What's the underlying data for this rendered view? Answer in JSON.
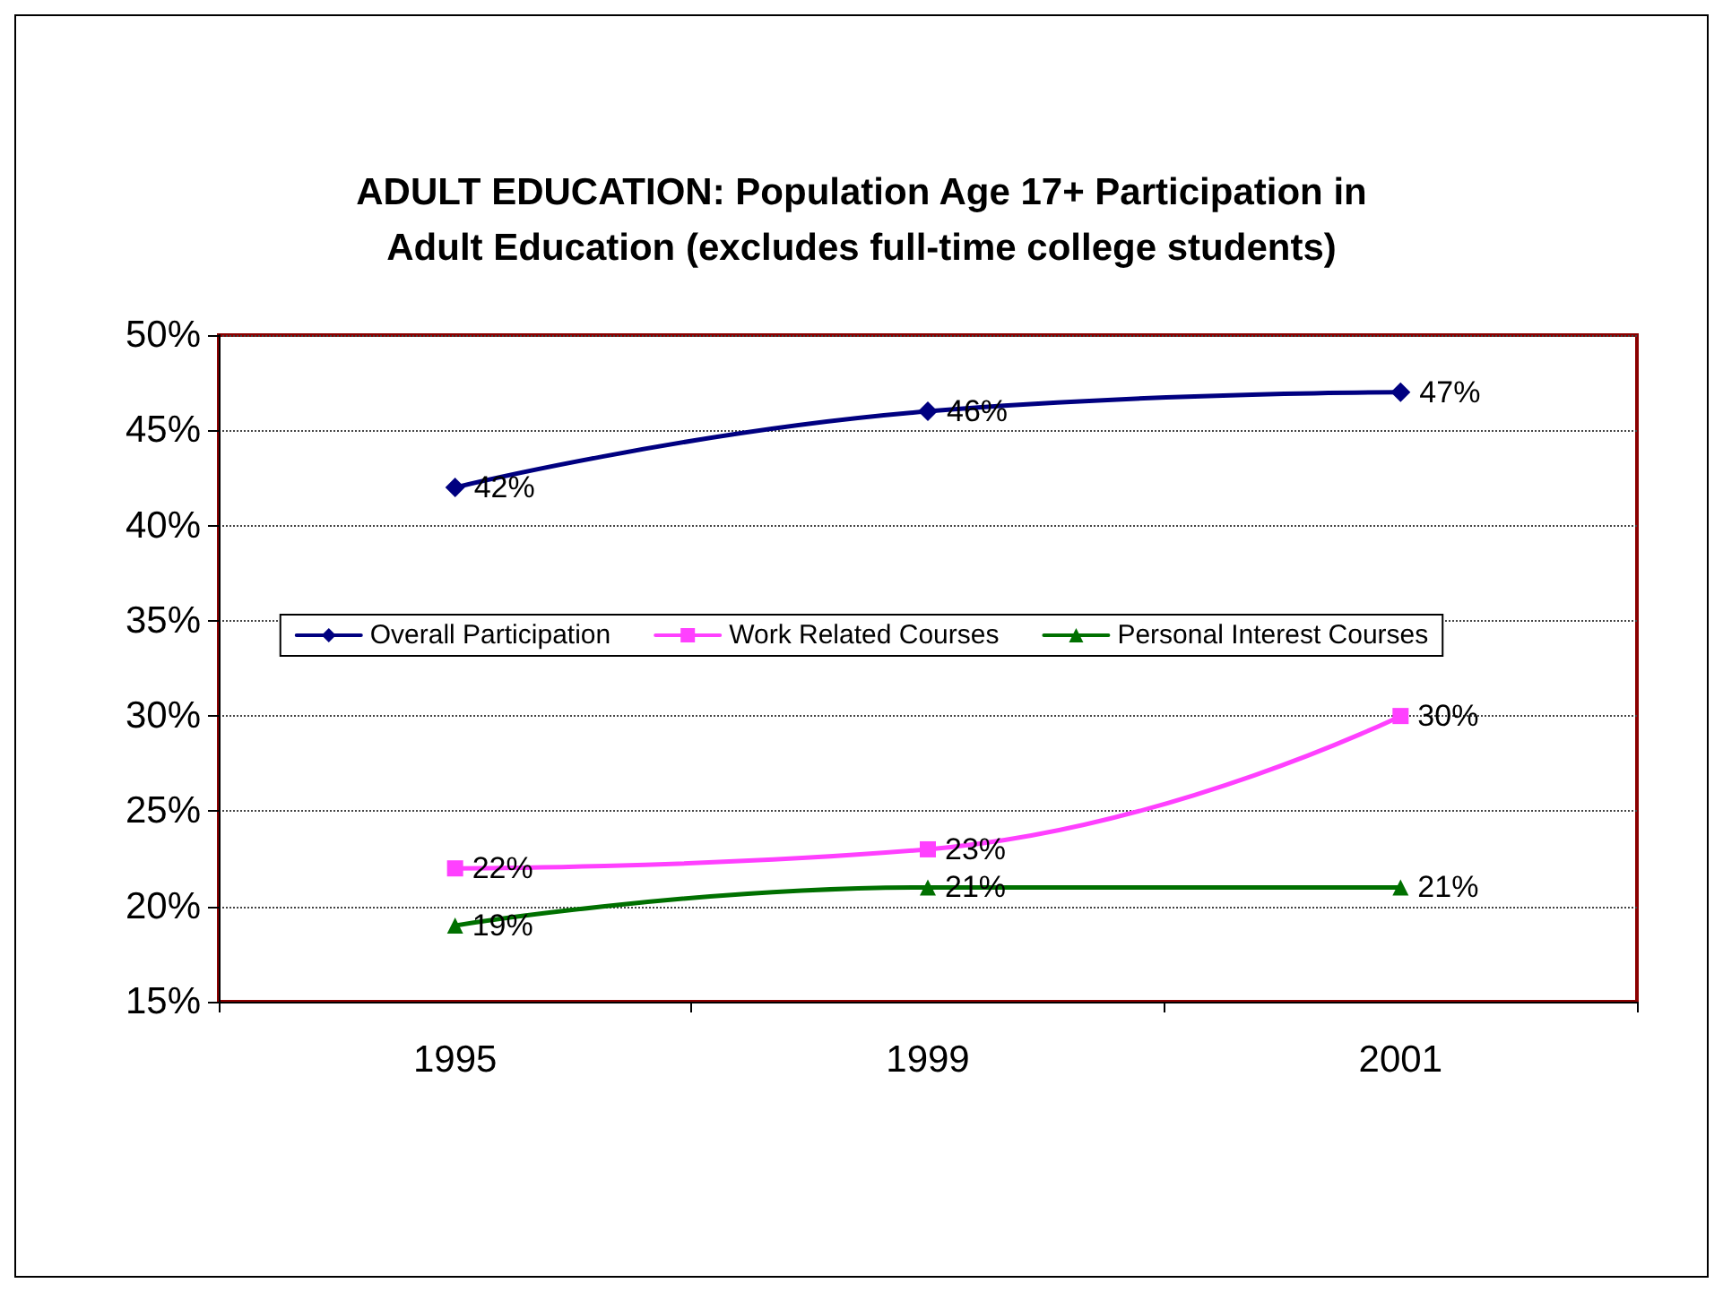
{
  "chart_data": {
    "type": "line",
    "title": "ADULT EDUCATION: Population Age 17+ Participation in\nAdult Education (excludes full-time college students)",
    "categories": [
      "1995",
      "1999",
      "2001"
    ],
    "series": [
      {
        "name": "Overall Participation",
        "color": "#000080",
        "marker": "diamond",
        "values": [
          42,
          46,
          47
        ],
        "value_labels": [
          "42%",
          "46%",
          "47%"
        ]
      },
      {
        "name": "Work Related Courses",
        "color": "#ff40ff",
        "marker": "square",
        "values": [
          22,
          23,
          30
        ],
        "value_labels": [
          "22%",
          "23%",
          "30%"
        ]
      },
      {
        "name": "Personal Interest Courses",
        "color": "#007000",
        "marker": "triangle",
        "values": [
          19,
          21,
          21
        ],
        "value_labels": [
          "19%",
          "21%",
          "21%"
        ]
      }
    ],
    "ylim": [
      15,
      50
    ],
    "yticks": [
      {
        "value": 15,
        "label": "15%"
      },
      {
        "value": 20,
        "label": "20%"
      },
      {
        "value": 25,
        "label": "25%"
      },
      {
        "value": 30,
        "label": "30%"
      },
      {
        "value": 35,
        "label": "35%"
      },
      {
        "value": 40,
        "label": "40%"
      },
      {
        "value": 45,
        "label": "45%"
      },
      {
        "value": 50,
        "label": "50%"
      }
    ],
    "grid": "y",
    "legend": "center",
    "line_style": "solid"
  }
}
